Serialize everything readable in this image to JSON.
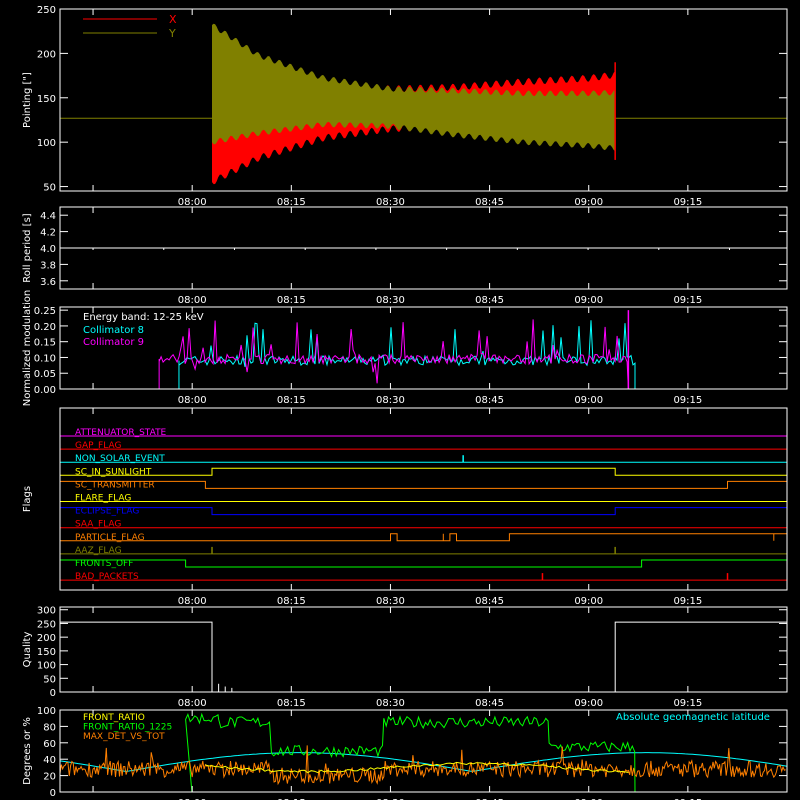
{
  "time_ticks": [
    "08:00",
    "08:15",
    "08:30",
    "08:45",
    "09:00",
    "09:15"
  ],
  "colors": {
    "axis": "#ffffff",
    "red": "#ff0000",
    "olive": "#808000",
    "cyan": "#00ffff",
    "magenta": "#ff00ff",
    "white": "#ffffff",
    "green": "#00ff00",
    "orange": "#ff8000",
    "yellow": "#ffff00",
    "blue": "#0000ff"
  },
  "chart_data": [
    {
      "type": "line",
      "id": "pointing",
      "ylabel": "Pointing [\"]",
      "ylim": [
        45,
        250
      ],
      "yticks": [
        50,
        100,
        150,
        200,
        250
      ],
      "x_range": [
        "07:40",
        "09:30"
      ],
      "legend": [
        {
          "name": "X",
          "color": "red"
        },
        {
          "name": "Y",
          "color": "olive"
        }
      ],
      "baseline": 127,
      "series": [
        {
          "name": "X",
          "x": [
            "08:03",
            "08:10",
            "08:20",
            "08:30",
            "08:40",
            "08:50",
            "09:00",
            "09:04"
          ],
          "upper": [
            200,
            182,
            165,
            160,
            162,
            168,
            172,
            176
          ],
          "lower": [
            55,
            82,
            105,
            115,
            118,
            112,
            106,
            100
          ]
        },
        {
          "name": "Y",
          "x": [
            "08:03",
            "08:10",
            "08:20",
            "08:30",
            "08:40",
            "08:50",
            "09:00",
            "09:04"
          ],
          "upper": [
            232,
            198,
            172,
            160,
            158,
            155,
            155,
            156
          ],
          "lower": [
            100,
            110,
            120,
            118,
            108,
            100,
            96,
            93
          ]
        }
      ]
    },
    {
      "type": "line",
      "id": "roll",
      "ylabel": "Roll period [s]",
      "ylim": [
        3.5,
        4.5
      ],
      "yticks": [
        "3.6",
        "3.8",
        "4.0",
        "4.2",
        "4.4"
      ],
      "value": 4.0
    },
    {
      "type": "line",
      "id": "modulation",
      "ylabel": "Normalized modulation",
      "ylim": [
        0,
        0.26
      ],
      "yticks": [
        "0.00",
        "0.05",
        "0.10",
        "0.15",
        "0.20",
        "0.25"
      ],
      "annotation": "Energy band: 12-25 keV",
      "legend": [
        {
          "name": "Collimator 8",
          "color": "cyan"
        },
        {
          "name": "Collimator 9",
          "color": "magenta"
        }
      ],
      "series": [
        {
          "name": "Collimator 8",
          "x_start": "07:58",
          "x_end": "09:07",
          "baseline": 0.09
        },
        {
          "name": "Collimator 9",
          "x_start": "07:55",
          "x_end": "09:06",
          "baseline": 0.095
        }
      ]
    },
    {
      "type": "line",
      "id": "flags",
      "ylabel": "Flags",
      "flags": [
        {
          "name": "ATTENUATOR_STATE",
          "color": "magenta"
        },
        {
          "name": "GAP_FLAG",
          "color": "red"
        },
        {
          "name": "NON_SOLAR_EVENT",
          "color": "cyan"
        },
        {
          "name": "SC_IN_SUNLIGHT",
          "color": "yellow"
        },
        {
          "name": "SC_TRANSMITTER",
          "color": "orange"
        },
        {
          "name": "FLARE_FLAG",
          "color": "yellow"
        },
        {
          "name": "ECLIPSE_FLAG",
          "color": "blue"
        },
        {
          "name": "SAA_FLAG",
          "color": "red"
        },
        {
          "name": "PARTICLE_FLAG",
          "color": "orange"
        },
        {
          "name": "AAZ_FLAG",
          "color": "olive"
        },
        {
          "name": "FRONTS_OFF",
          "color": "green"
        },
        {
          "name": "BAD_PACKETS",
          "color": "red"
        }
      ]
    },
    {
      "type": "line",
      "id": "quality",
      "ylabel": "Quality",
      "ylim": [
        0,
        310
      ],
      "yticks": [
        0,
        50,
        100,
        150,
        200,
        250,
        300
      ],
      "segments": [
        {
          "x": [
            "07:40",
            "08:03"
          ],
          "value": 255
        },
        {
          "x": [
            "08:03",
            "09:04"
          ],
          "value": 0
        },
        {
          "x": [
            "09:04",
            "09:30"
          ],
          "value": 255
        }
      ]
    },
    {
      "type": "line",
      "id": "ratios",
      "ylabel": "Degrees or %",
      "ylim": [
        0,
        100
      ],
      "yticks": [
        0,
        20,
        40,
        60,
        80,
        100
      ],
      "legend": [
        {
          "name": "FRONT_RATIO",
          "color": "yellow"
        },
        {
          "name": "FRONT_RATIO_1225",
          "color": "green"
        },
        {
          "name": "MAX_DET_VS_TOT",
          "color": "orange"
        }
      ],
      "annotation": "Absolute geomagnetic latitude"
    }
  ]
}
